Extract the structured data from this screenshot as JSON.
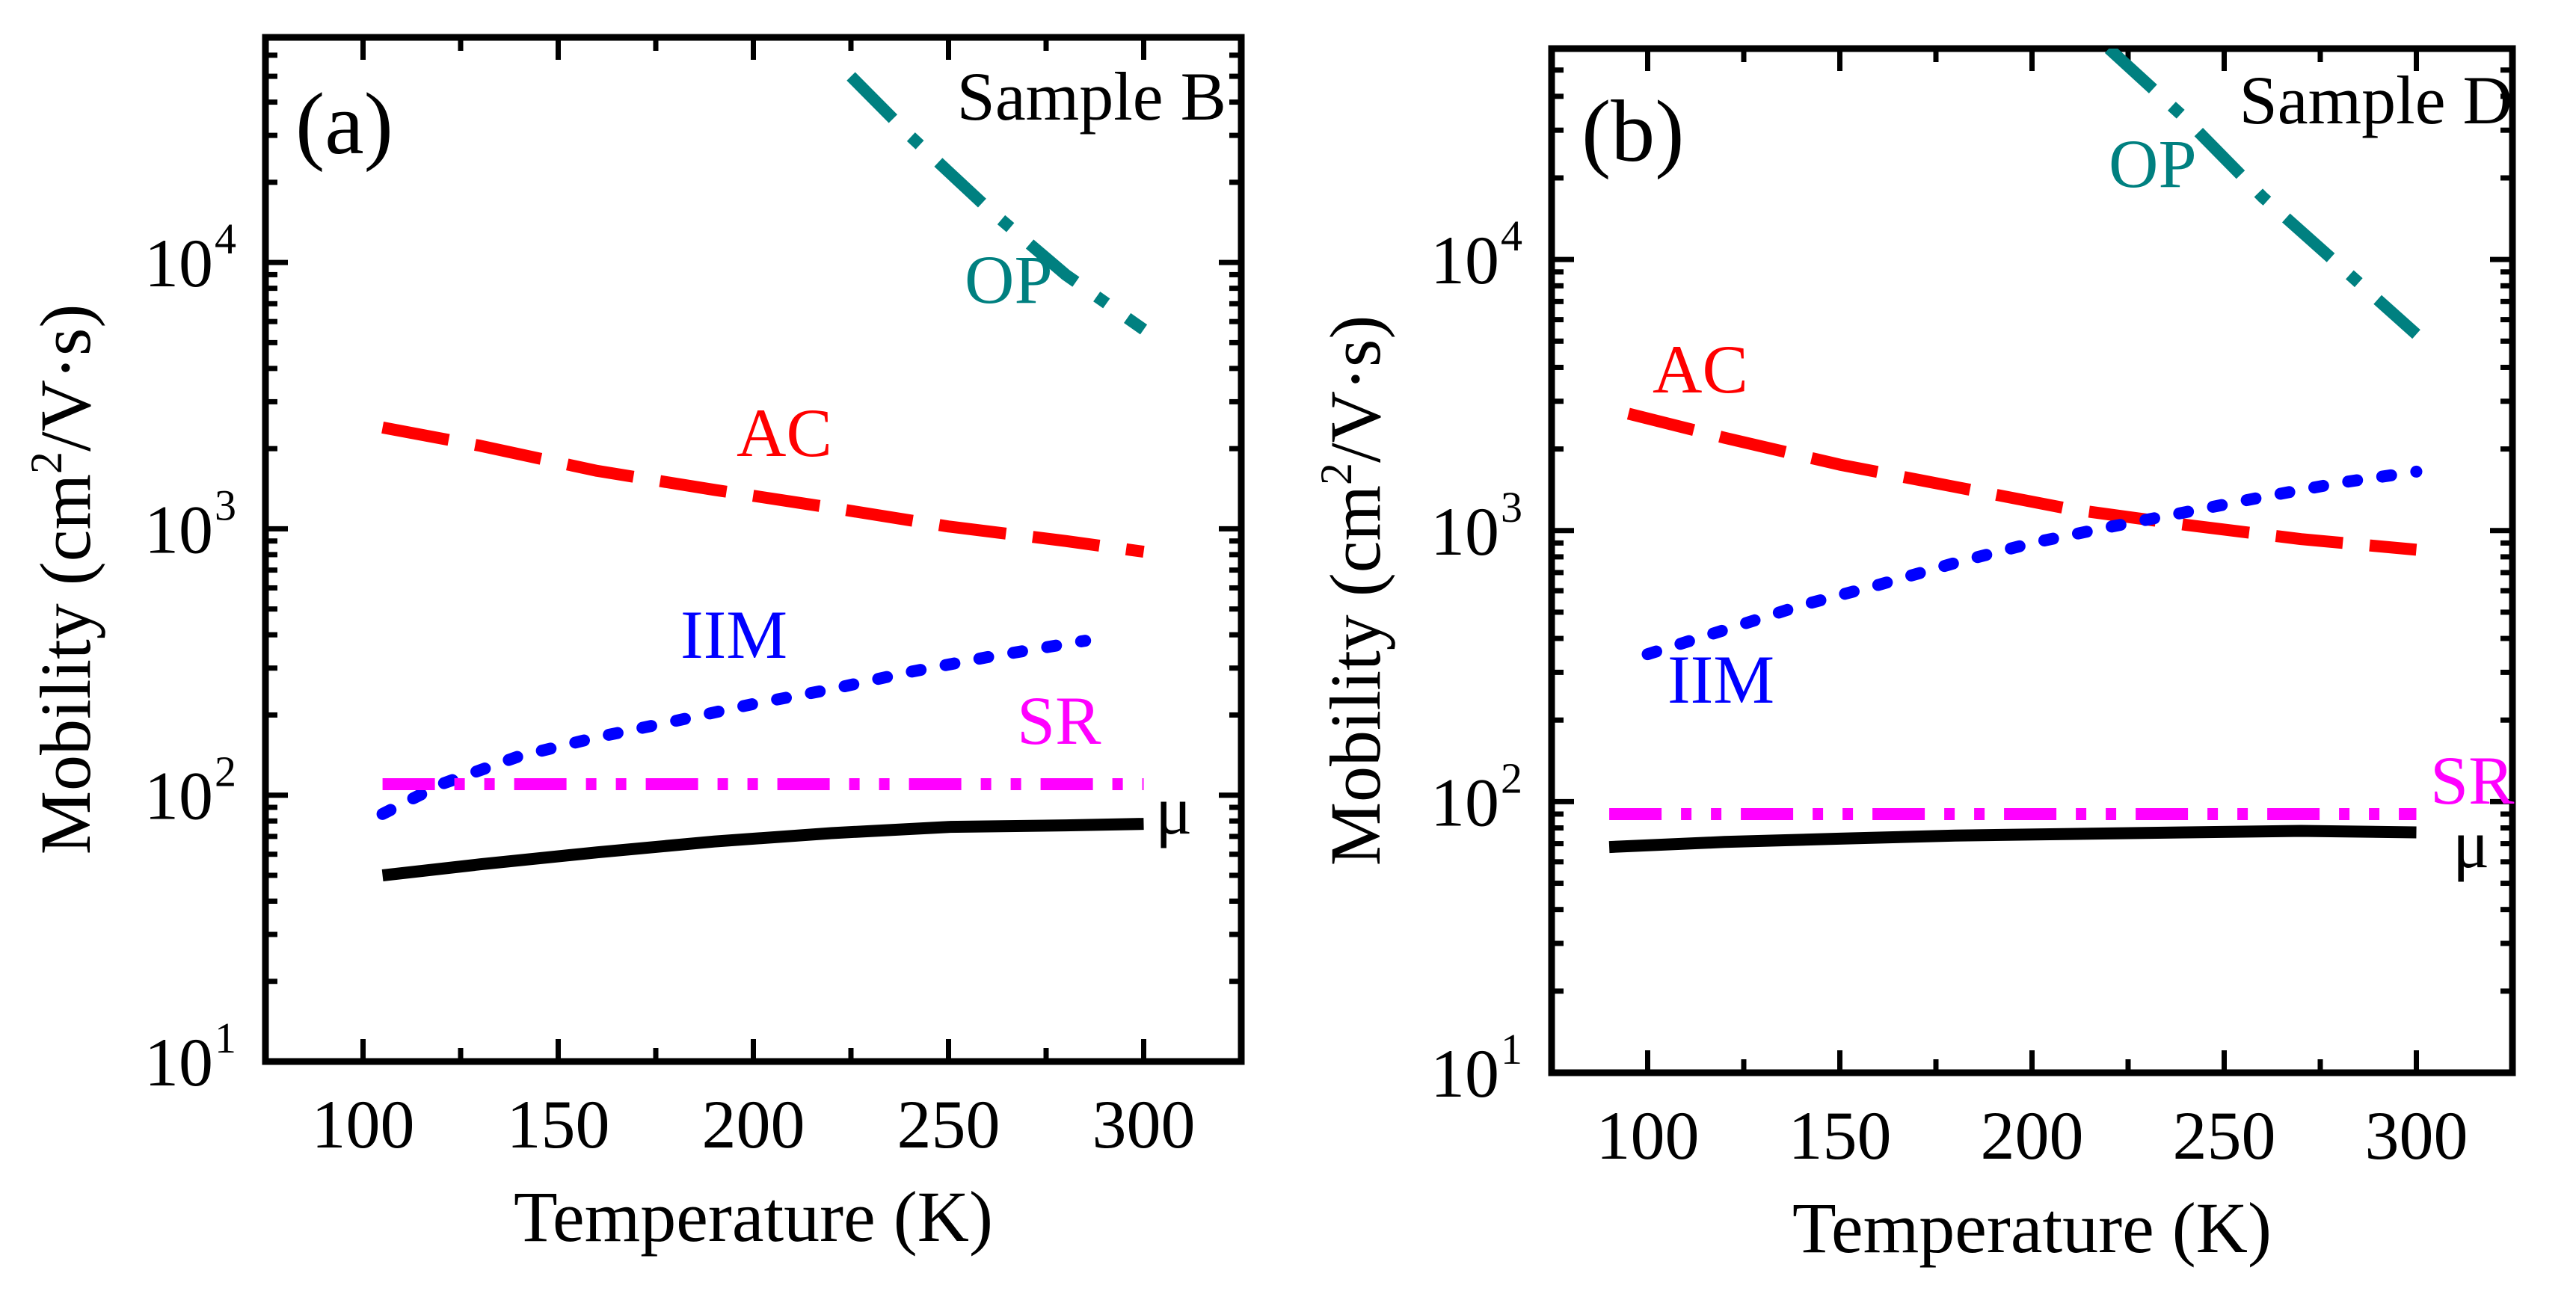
{
  "chart_data": [
    {
      "type": "line",
      "panel_label": "(a)",
      "sample": "Sample B",
      "xlabel": "Temperature (K)",
      "ylabel_main": "Mobility (cm",
      "ylabel_sup": "2",
      "ylabel_tail": "/V·s)",
      "x_scale": "linear",
      "y_scale": "log",
      "xlim": [
        75,
        325
      ],
      "ylim": [
        10,
        70000
      ],
      "x_ticks": [
        100,
        150,
        200,
        250,
        300
      ],
      "x_tick_labels": [
        "100",
        "150",
        "200",
        "250",
        "300"
      ],
      "y_ticks": [
        10,
        100,
        1000,
        10000
      ],
      "y_tick_base": "10",
      "y_tick_exps": [
        "1",
        "2",
        "3",
        "4"
      ],
      "series": [
        {
          "name": "OP",
          "label": "OP",
          "color": "#008080",
          "style": "dashdot",
          "x": [
            225,
            240,
            260,
            280,
            300
          ],
          "y": [
            50000,
            30000,
            16000,
            9000,
            5600
          ]
        },
        {
          "name": "AC",
          "label": "AC",
          "color": "#ff0000",
          "style": "dash",
          "x": [
            105,
            130,
            160,
            190,
            220,
            250,
            280,
            300
          ],
          "y": [
            2400,
            2050,
            1650,
            1400,
            1200,
            1020,
            900,
            820
          ]
        },
        {
          "name": "IIM",
          "label": "IIM",
          "color": "#0000ff",
          "style": "dot",
          "x": [
            105,
            120,
            140,
            160,
            180,
            200,
            220,
            240,
            260,
            285
          ],
          "y": [
            85,
            110,
            140,
            165,
            190,
            220,
            250,
            290,
            330,
            380
          ]
        },
        {
          "name": "SR",
          "label": "SR",
          "color": "#ff00ff",
          "style": "dashdotdot",
          "x": [
            105,
            150,
            200,
            250,
            300
          ],
          "y": [
            110,
            110,
            110,
            110,
            110
          ]
        },
        {
          "name": "μ",
          "label": "μ",
          "color": "#000000",
          "style": "solid",
          "x": [
            105,
            130,
            160,
            190,
            220,
            250,
            280,
            300
          ],
          "y": [
            50,
            55,
            61,
            67,
            72,
            76,
            77,
            78
          ]
        }
      ]
    },
    {
      "type": "line",
      "panel_label": "(b)",
      "sample": "Sample D",
      "xlabel": "Temperature (K)",
      "ylabel_main": "Mobility (cm",
      "ylabel_sup": "2",
      "ylabel_tail": "/V·s)",
      "x_scale": "linear",
      "y_scale": "log",
      "xlim": [
        75,
        325
      ],
      "ylim": [
        10,
        60000
      ],
      "x_ticks": [
        100,
        150,
        200,
        250,
        300
      ],
      "x_tick_labels": [
        "100",
        "150",
        "200",
        "250",
        "300"
      ],
      "y_ticks": [
        10,
        100,
        1000,
        10000
      ],
      "y_tick_base": "10",
      "y_tick_exps": [
        "1",
        "2",
        "3",
        "4"
      ],
      "series": [
        {
          "name": "OP",
          "label": "OP",
          "color": "#008080",
          "style": "dashdot",
          "x": [
            220,
            240,
            260,
            280,
            300
          ],
          "y": [
            60000,
            33000,
            17000,
            9500,
            5300
          ]
        },
        {
          "name": "AC",
          "label": "AC",
          "color": "#ff0000",
          "style": "dash",
          "x": [
            95,
            120,
            150,
            180,
            210,
            240,
            270,
            300
          ],
          "y": [
            2700,
            2200,
            1750,
            1450,
            1200,
            1050,
            930,
            850
          ]
        },
        {
          "name": "IIM",
          "label": "IIM",
          "color": "#0000ff",
          "style": "dot",
          "x": [
            100,
            120,
            140,
            160,
            180,
            200,
            220,
            240,
            260,
            280,
            300
          ],
          "y": [
            350,
            430,
            530,
            630,
            760,
            900,
            1030,
            1170,
            1330,
            1500,
            1650
          ]
        },
        {
          "name": "SR",
          "label": "SR",
          "color": "#ff00ff",
          "style": "dashdotdot",
          "x": [
            90,
            150,
            200,
            250,
            300
          ],
          "y": [
            90,
            90,
            90,
            90,
            90
          ]
        },
        {
          "name": "μ",
          "label": "μ",
          "color": "#000000",
          "style": "solid",
          "x": [
            90,
            120,
            150,
            180,
            210,
            240,
            270,
            300
          ],
          "y": [
            68,
            71,
            73,
            75,
            76,
            77,
            78,
            77
          ]
        }
      ]
    }
  ]
}
